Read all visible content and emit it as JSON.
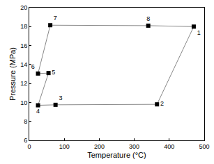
{
  "chart_data": {
    "type": "scatter",
    "x_label": "Temperature (°C)",
    "y_label": "Pressure (MPa)",
    "labels": [
      "1",
      "2",
      "3",
      "4",
      "5",
      "6",
      "7",
      "8"
    ],
    "x": [
      470,
      365,
      75,
      25,
      55,
      25,
      60,
      340
    ],
    "y": [
      18.0,
      9.8,
      9.75,
      9.7,
      13.1,
      13.05,
      18.15,
      18.1
    ],
    "color": "#000000",
    "line_color": "#888888",
    "marker": "square",
    "line_style": "solid",
    "xlim": [
      0,
      500
    ],
    "xticks": [
      0,
      100,
      200,
      300,
      400,
      500
    ],
    "ylim": [
      6,
      20
    ],
    "yticks": [
      6,
      8,
      10,
      12,
      14,
      16,
      18,
      20
    ],
    "grid": false
  }
}
